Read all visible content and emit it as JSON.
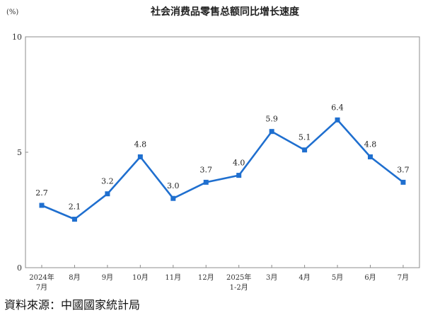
{
  "chart_data": {
    "type": "line",
    "title": "社会消费品零售总额同比增长速度",
    "unit_label": "(%)",
    "categories": [
      [
        "2024年",
        "7月"
      ],
      [
        "8月"
      ],
      [
        "9月"
      ],
      [
        "10月"
      ],
      [
        "11月"
      ],
      [
        "12月"
      ],
      [
        "2025年",
        "1-2月"
      ],
      [
        "3月"
      ],
      [
        "4月"
      ],
      [
        "5月"
      ],
      [
        "6月"
      ],
      [
        "7月"
      ]
    ],
    "series": [
      {
        "values": [
          2.7,
          2.1,
          3.2,
          4.8,
          3.0,
          3.7,
          4.0,
          5.9,
          5.1,
          6.4,
          4.8,
          3.7
        ],
        "color": "#1f6fcf"
      }
    ],
    "data_labels": [
      "2.7",
      "2.1",
      "3.2",
      "4.8",
      "3.0",
      "3.7",
      "4.0",
      "5.9",
      "5.1",
      "6.4",
      "4.8",
      "3.7"
    ],
    "ylim": [
      0,
      10
    ],
    "yticks": [
      0,
      5,
      10
    ],
    "ytick_labels": [
      "0",
      "5",
      "10"
    ],
    "grid": false,
    "legend": "none"
  },
  "source_text": "資料來源：中國國家統計局"
}
